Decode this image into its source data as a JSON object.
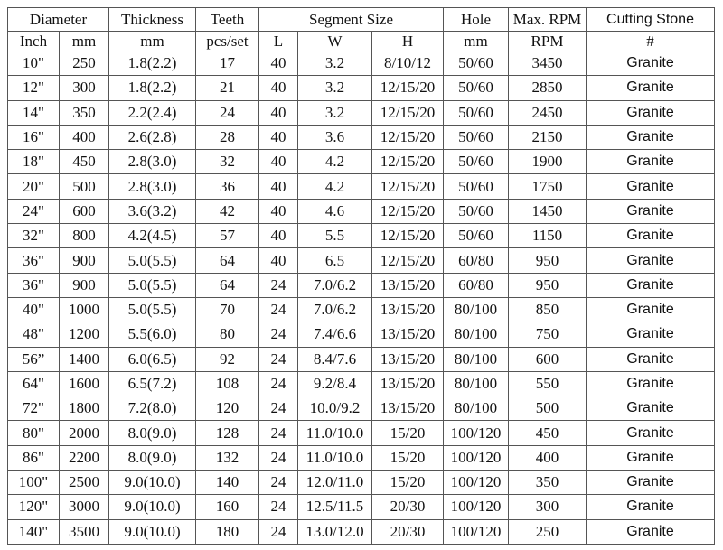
{
  "header": {
    "diameter": "Diameter",
    "thickness": "Thickness",
    "teeth": "Teeth",
    "segment_size": "Segment Size",
    "hole": "Hole",
    "max_rpm": "Max. RPM",
    "cutting_stone": "Cutting Stone"
  },
  "subheader": {
    "inch": "Inch",
    "mm": "mm",
    "thickness_unit": "mm",
    "teeth_unit": "pcs/set",
    "l": "L",
    "w": "W",
    "h": "H",
    "hole_unit": "mm",
    "rpm_unit": "RPM",
    "stone_unit": "#"
  },
  "rows": [
    [
      "10\"",
      "250",
      "1.8(2.2)",
      "17",
      "40",
      "3.2",
      "8/10/12",
      "50/60",
      "3450",
      "Granite"
    ],
    [
      "12\"",
      "300",
      "1.8(2.2)",
      "21",
      "40",
      "3.2",
      "12/15/20",
      "50/60",
      "2850",
      "Granite"
    ],
    [
      "14\"",
      "350",
      "2.2(2.4)",
      "24",
      "40",
      "3.2",
      "12/15/20",
      "50/60",
      "2450",
      "Granite"
    ],
    [
      "16\"",
      "400",
      "2.6(2.8)",
      "28",
      "40",
      "3.6",
      "12/15/20",
      "50/60",
      "2150",
      "Granite"
    ],
    [
      "18\"",
      "450",
      "2.8(3.0)",
      "32",
      "40",
      "4.2",
      "12/15/20",
      "50/60",
      "1900",
      "Granite"
    ],
    [
      "20\"",
      "500",
      "2.8(3.0)",
      "36",
      "40",
      "4.2",
      "12/15/20",
      "50/60",
      "1750",
      "Granite"
    ],
    [
      "24\"",
      "600",
      "3.6(3.2)",
      "42",
      "40",
      "4.6",
      "12/15/20",
      "50/60",
      "1450",
      "Granite"
    ],
    [
      "32\"",
      "800",
      "4.2(4.5)",
      "57",
      "40",
      "5.5",
      "12/15/20",
      "50/60",
      "1150",
      "Granite"
    ],
    [
      "36\"",
      "900",
      "5.0(5.5)",
      "64",
      "40",
      "6.5",
      "12/15/20",
      "60/80",
      "950",
      "Granite"
    ],
    [
      "36\"",
      "900",
      "5.0(5.5)",
      "64",
      "24",
      "7.0/6.2",
      "13/15/20",
      "60/80",
      "950",
      "Granite"
    ],
    [
      "40\"",
      "1000",
      "5.0(5.5)",
      "70",
      "24",
      "7.0/6.2",
      "13/15/20",
      "80/100",
      "850",
      "Granite"
    ],
    [
      "48\"",
      "1200",
      "5.5(6.0)",
      "80",
      "24",
      "7.4/6.6",
      "13/15/20",
      "80/100",
      "750",
      "Granite"
    ],
    [
      "56”",
      "1400",
      "6.0(6.5)",
      "92",
      "24",
      "8.4/7.6",
      "13/15/20",
      "80/100",
      "600",
      "Granite"
    ],
    [
      "64\"",
      "1600",
      "6.5(7.2)",
      "108",
      "24",
      "9.2/8.4",
      "13/15/20",
      "80/100",
      "550",
      "Granite"
    ],
    [
      "72\"",
      "1800",
      "7.2(8.0)",
      "120",
      "24",
      "10.0/9.2",
      "13/15/20",
      "80/100",
      "500",
      "Granite"
    ],
    [
      "80\"",
      "2000",
      "8.0(9.0)",
      "128",
      "24",
      "11.0/10.0",
      "15/20",
      "100/120",
      "450",
      "Granite"
    ],
    [
      "86\"",
      "2200",
      "8.0(9.0)",
      "132",
      "24",
      "11.0/10.0",
      "15/20",
      "100/120",
      "400",
      "Granite"
    ],
    [
      "100\"",
      "2500",
      "9.0(10.0)",
      "140",
      "24",
      "12.0/11.0",
      "15/20",
      "100/120",
      "350",
      "Granite"
    ],
    [
      "120\"",
      "3000",
      "9.0(10.0)",
      "160",
      "24",
      "12.5/11.5",
      "20/30",
      "100/120",
      "300",
      "Granite"
    ],
    [
      "140\"",
      "3500",
      "9.0(10.0)",
      "180",
      "24",
      "13.0/12.0",
      "20/30",
      "100/120",
      "250",
      "Granite"
    ]
  ]
}
